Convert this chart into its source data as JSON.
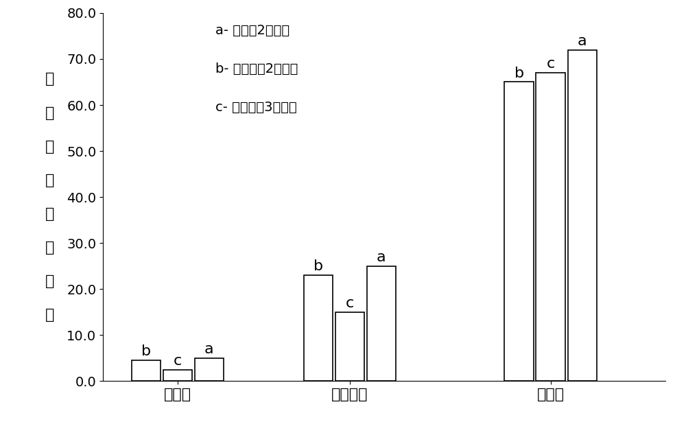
{
  "categories": [
    "蛋白质",
    "直链淀粉",
    "食味值"
  ],
  "groups": {
    "b": [
      4.5,
      23.0,
      65.0
    ],
    "c": [
      2.5,
      15.0,
      67.0
    ],
    "a": [
      5.0,
      25.0,
      72.0
    ]
  },
  "group_labels": [
    "b",
    "c",
    "a"
  ],
  "bar_color": "#ffffff",
  "bar_edgecolor": "#000000",
  "ylim": [
    0,
    80.0
  ],
  "yticks": [
    0.0,
    10.0,
    20.0,
    30.0,
    40.0,
    50.0,
    60.0,
    70.0,
    80.0
  ],
  "ylabel_chars": [
    "营",
    "养",
    "含",
    "量",
    "及",
    "食",
    "味",
    "值"
  ],
  "legend_items": [
    "a- 实施例2的稻米",
    "b- 对比试验2的稻米",
    "c- 对比试验3的稻米"
  ],
  "bar_width": 0.55,
  "annotation_fontsize": 16,
  "label_fontsize": 16,
  "tick_fontsize": 14,
  "legend_fontsize": 14,
  "ylabel_fontsize": 16
}
